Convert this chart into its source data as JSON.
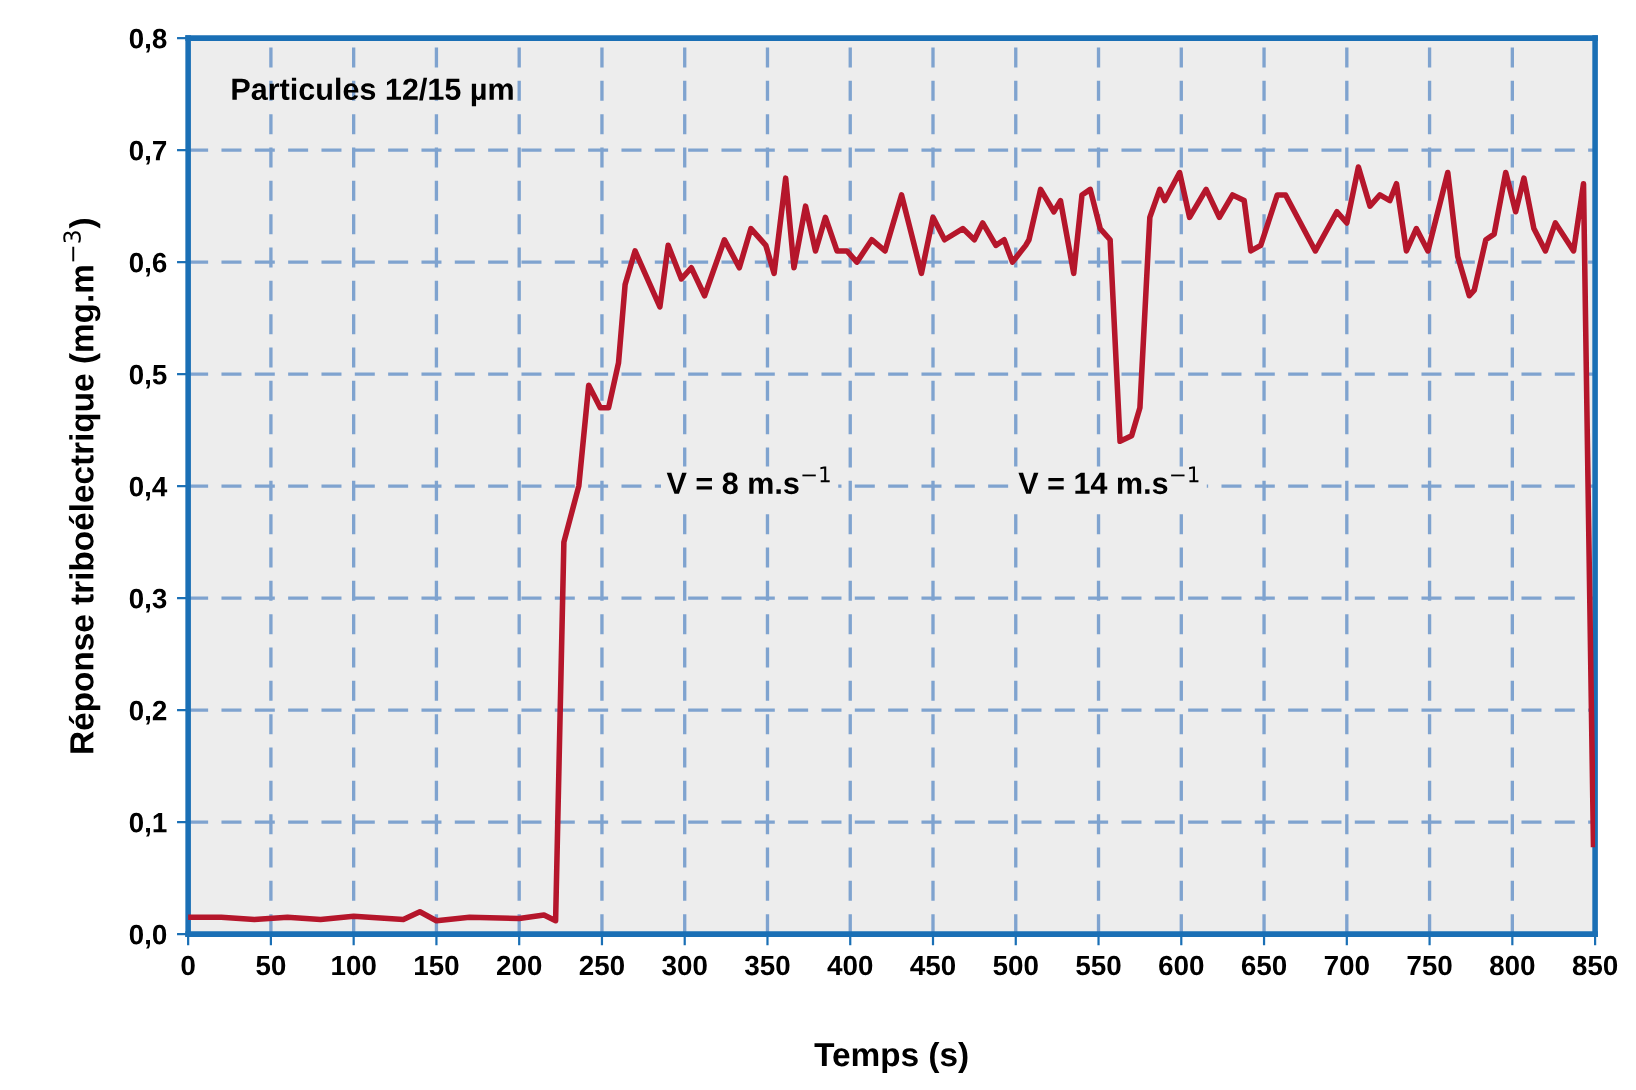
{
  "chart_data": {
    "type": "line",
    "xlabel": "Temps (s)",
    "ylabel": "Réponse triboélectrique (mg.m$^{−3}$)",
    "annotations": [
      "Particules 12/15 µm",
      "V = 8 m.s$^{−1}$",
      "V = 14 m.s$^{−1}$"
    ],
    "series": [
      {
        "color": "#b5162b",
        "x": [
          0,
          20,
          40,
          60,
          80,
          100,
          130,
          140,
          150,
          170,
          200,
          215,
          222,
          227,
          236,
          242,
          249,
          254,
          260,
          264,
          270,
          276,
          285,
          290,
          298,
          304,
          312,
          324,
          333,
          340,
          349,
          354,
          361,
          366,
          373,
          379,
          385,
          392,
          398,
          404,
          413,
          421,
          431,
          443,
          450,
          457,
          468,
          475,
          480,
          488,
          493,
          498,
          506,
          508,
          515,
          523,
          527,
          535,
          540,
          545,
          551,
          557,
          563,
          570,
          575,
          581,
          587,
          590,
          599,
          605,
          615,
          623,
          631,
          638,
          642,
          648,
          658,
          663,
          681,
          694,
          700,
          707,
          714,
          720,
          726,
          730,
          736,
          742,
          749,
          761,
          767,
          774,
          777,
          784,
          789,
          796,
          802,
          807,
          813,
          820,
          826,
          837,
          843,
          849
        ],
        "values": [
          0.015,
          0.015,
          0.013,
          0.015,
          0.013,
          0.016,
          0.013,
          0.02,
          0.012,
          0.015,
          0.014,
          0.017,
          0.012,
          0.35,
          0.4,
          0.49,
          0.47,
          0.47,
          0.51,
          0.58,
          0.61,
          0.59,
          0.56,
          0.615,
          0.585,
          0.595,
          0.57,
          0.62,
          0.595,
          0.63,
          0.615,
          0.59,
          0.675,
          0.595,
          0.65,
          0.61,
          0.64,
          0.61,
          0.61,
          0.6,
          0.62,
          0.61,
          0.66,
          0.59,
          0.64,
          0.62,
          0.63,
          0.62,
          0.635,
          0.615,
          0.62,
          0.6,
          0.615,
          0.62,
          0.665,
          0.645,
          0.655,
          0.59,
          0.66,
          0.665,
          0.63,
          0.62,
          0.44,
          0.445,
          0.47,
          0.64,
          0.665,
          0.655,
          0.68,
          0.64,
          0.665,
          0.64,
          0.66,
          0.655,
          0.61,
          0.615,
          0.66,
          0.66,
          0.61,
          0.645,
          0.635,
          0.685,
          0.65,
          0.66,
          0.655,
          0.67,
          0.61,
          0.63,
          0.61,
          0.68,
          0.605,
          0.57,
          0.575,
          0.62,
          0.625,
          0.68,
          0.645,
          0.675,
          0.63,
          0.61,
          0.635,
          0.61,
          0.67,
          0.08
        ]
      }
    ],
    "xlim": [
      0,
      850
    ],
    "xticks": [
      0,
      50,
      100,
      150,
      200,
      250,
      300,
      350,
      400,
      450,
      500,
      550,
      600,
      650,
      700,
      750,
      800,
      850
    ],
    "ylim": [
      0,
      0.8
    ],
    "yticks": [
      {
        "value": 0,
        "label": "0,0"
      },
      {
        "value": 0.1,
        "label": "0,1"
      },
      {
        "value": 0.2,
        "label": "0,2"
      },
      {
        "value": 0.3,
        "label": "0,3"
      },
      {
        "value": 0.4,
        "label": "0,4"
      },
      {
        "value": 0.5,
        "label": "0,5"
      },
      {
        "value": 0.6,
        "label": "0,6"
      },
      {
        "value": 0.7,
        "label": "0,7"
      },
      {
        "value": 0.8,
        "label": "0,8"
      }
    ],
    "grid": true,
    "marker": "none",
    "line_style": "solid"
  }
}
